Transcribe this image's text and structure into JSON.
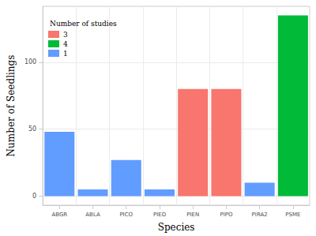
{
  "chart_data": {
    "type": "bar",
    "x_label": "Species",
    "y_label": "Number of Seedlings",
    "legend_title": "Number of studies",
    "legend": "upper left",
    "categories": [
      "ABGR",
      "ABLA",
      "PICO",
      "PIED",
      "PIEN",
      "PIPO",
      "PIRA2",
      "PSME"
    ],
    "series": [
      {
        "name": "3",
        "color": "#F8766D",
        "values": [
          null,
          null,
          null,
          null,
          80,
          80,
          null,
          null
        ]
      },
      {
        "name": "4",
        "color": "#00BA38",
        "values": [
          null,
          null,
          null,
          null,
          null,
          null,
          null,
          135
        ]
      },
      {
        "name": "1",
        "color": "#619CFF",
        "values": [
          48,
          5,
          27,
          5,
          null,
          null,
          10,
          null
        ]
      }
    ],
    "ylim": [
      -6.75,
      141.75
    ],
    "yticks": [
      0,
      50,
      100
    ],
    "grid": true
  }
}
